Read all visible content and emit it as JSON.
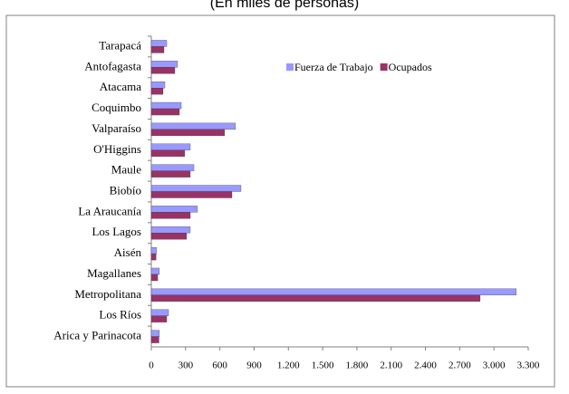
{
  "chart_data": {
    "type": "hbar",
    "subtitle": "(En miles de personas)",
    "categories": [
      "Tarapacá",
      "Antofagasta",
      "Atacama",
      "Coquimbo",
      "Valparaíso",
      "O'Higgins",
      "Maule",
      "Biobío",
      "La Araucanía",
      "Los Lagos",
      "Aisén",
      "Magallanes",
      "Metropolitana",
      "Los Ríos",
      "Arica y Parinacota"
    ],
    "series": [
      {
        "name": "Fuerza de Trabajo",
        "color": "#9999ff",
        "values": [
          135,
          230,
          119,
          262,
          737,
          341,
          373,
          785,
          404,
          341,
          45,
          71,
          3196,
          151,
          71
        ]
      },
      {
        "name": "Ocupados",
        "color": "#993366",
        "values": [
          111,
          206,
          103,
          246,
          642,
          293,
          341,
          706,
          341,
          309,
          42,
          56,
          2879,
          135,
          67
        ]
      }
    ],
    "xlim": [
      0,
      3300
    ],
    "xticks": [
      0,
      300,
      600,
      900,
      {
        "value": 1200,
        "label": "1.200"
      },
      {
        "value": 1500,
        "label": "1.500"
      },
      {
        "value": 1800,
        "label": "1.800"
      },
      {
        "value": 2100,
        "label": "2.100"
      },
      {
        "value": 2400,
        "label": "2.400"
      },
      {
        "value": 2700,
        "label": "2.700"
      },
      {
        "value": 3000,
        "label": "3.000"
      },
      {
        "value": 3300,
        "label": "3.300"
      }
    ],
    "legend": "top-right"
  }
}
